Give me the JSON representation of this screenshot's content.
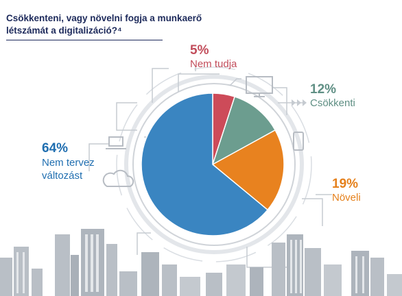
{
  "title_line1": "Csökkenteni, vagy növelni fogja a munkaerő",
  "title_line2": "létszámát a digitalizáció?⁴",
  "chart_data": {
    "type": "pie",
    "categories": [
      "Nem tudja",
      "Csökkenti",
      "Növeli",
      "Nem tervez változást"
    ],
    "values": [
      5,
      12,
      19,
      64
    ],
    "labels": [
      "5%",
      "12%",
      "19%",
      "64%"
    ],
    "colors": [
      "#cd4b59",
      "#6c9d8f",
      "#e8821f",
      "#3a85c1"
    ],
    "legend": "none"
  },
  "labels": {
    "nem_tudja": {
      "pct": "5%",
      "name": "Nem tudja"
    },
    "csokkenti": {
      "pct": "12%",
      "name": "Csökkenti"
    },
    "noveli": {
      "pct": "19%",
      "name": "Növeli"
    },
    "nem_tervez": {
      "pct": "64%",
      "name1": "Nem tervez",
      "name2": "változást"
    }
  }
}
